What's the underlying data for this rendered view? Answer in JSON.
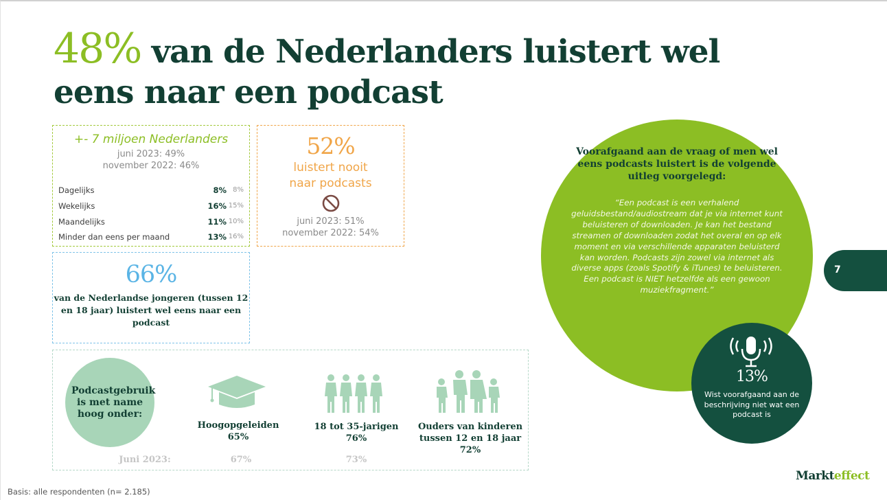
{
  "title": {
    "highlight": "48%",
    "rest": " van de Nederlanders luistert wel eens naar een podcast"
  },
  "box_green": {
    "heading": "+- 7 miljoen Nederlanders",
    "sub1": "juni 2023: 49%",
    "sub2": "november 2022: 46%",
    "rows": [
      {
        "label": "Dagelijks",
        "value": "8%",
        "prev": "8%"
      },
      {
        "label": "Wekelijks",
        "value": "16%",
        "prev": "15%"
      },
      {
        "label": "Maandelijks",
        "value": "11%",
        "prev": "10%"
      },
      {
        "label": "Minder dan eens per maand",
        "value": "13%",
        "prev": "16%"
      }
    ]
  },
  "box_orange": {
    "percent": "52%",
    "line1": "luistert nooit",
    "line2": "naar podcasts",
    "icon": "prohibited-icon",
    "sub1": "juni 2023: 51%",
    "sub2": "november 2022: 54%"
  },
  "box_blue": {
    "percent": "66%",
    "text": "van de Nederlandse jongeren (tussen 12 en 18 jaar) luistert wel eens naar een podcast"
  },
  "usage": {
    "circle_text": "Podcastgebruik is met name hoog onder:",
    "groups": [
      {
        "label": "Hoogopgeleiden",
        "value": "65%",
        "juni": "67%",
        "icon": "graduation-cap-icon"
      },
      {
        "label": "18 tot 35-jarigen",
        "value": "76%",
        "juni": "73%",
        "icon": "young-people-icon"
      },
      {
        "label": "Ouders van kinderen tussen 12 en 18 jaar",
        "value": "72%",
        "juni": "",
        "icon": "family-icon"
      }
    ],
    "juni_label": "Juni 2023:"
  },
  "big_circle": {
    "heading": "Voorafgaand aan de vraag of men wel eens podcasts luistert is de volgende uitleg voorgelegd:",
    "quote": "“Een podcast is een verhalend geluidsbestand/audiostream dat je via internet kunt beluisteren of downloaden. Je kan het bestand streamen of downloaden zodat het overal en op elk moment en via verschillende apparaten beluisterd kan worden. Podcasts zijn zowel via internet als diverse apps (zoals Spotify & iTunes) te beluisteren. Een podcast is NIET hetzelfde als een gewoon muziekfragment.”"
  },
  "dark_circle": {
    "icon": "microphone-icon",
    "percent": "13%",
    "text": "Wist voorafgaand aan de beschrijving niet wat een podcast is"
  },
  "page_number": "7",
  "basis": "Basis: alle respondenten (n= 2.185)",
  "logo": {
    "part1": "Markt",
    "part2": "effect"
  },
  "colors": {
    "lime": "#8cbe24",
    "dark_green": "#14503f",
    "title": "#123f33",
    "orange": "#f0a548",
    "blue": "#5ab4e5",
    "mint": "#a8d5b8"
  }
}
